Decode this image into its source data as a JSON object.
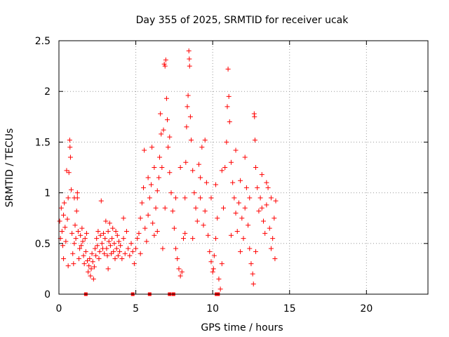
{
  "chart_data": {
    "type": "scatter",
    "title": "Day 355 of 2025, SRMTID for receiver ucak",
    "xlabel": "GPS time / hours",
    "ylabel": "SRMTID / TECUs",
    "xlim": [
      0,
      24
    ],
    "ylim": [
      0,
      2.5
    ],
    "xticks": [
      0,
      5,
      10,
      15,
      20
    ],
    "yticks": [
      0,
      0.5,
      1,
      1.5,
      2,
      2.5
    ],
    "ytick_labels": [
      "0",
      "0.5",
      "1",
      "1.5",
      "2",
      "2.5"
    ],
    "grid": true,
    "marker": "plus",
    "color": "#ff0000",
    "series": [
      {
        "name": "SRMTID",
        "points": [
          [
            0.05,
            0.72
          ],
          [
            0.1,
            0.55
          ],
          [
            0.15,
            0.85
          ],
          [
            0.2,
            0.62
          ],
          [
            0.25,
            0.48
          ],
          [
            0.3,
            0.78
          ],
          [
            0.35,
            0.9
          ],
          [
            0.4,
            0.66
          ],
          [
            0.45,
            0.52
          ],
          [
            0.5,
            1.22
          ],
          [
            0.55,
            0.74
          ],
          [
            0.6,
            0.95
          ],
          [
            0.65,
            1.2
          ],
          [
            0.7,
            1.52
          ],
          [
            0.72,
            1.45
          ],
          [
            0.75,
            1.35
          ],
          [
            0.8,
            1.03
          ],
          [
            0.85,
            0.6
          ],
          [
            0.9,
            0.4
          ],
          [
            0.95,
            0.3
          ],
          [
            1.0,
            0.5
          ],
          [
            1.05,
            0.68
          ],
          [
            1.1,
            0.55
          ],
          [
            1.15,
            0.82
          ],
          [
            1.2,
            0.95
          ],
          [
            1.25,
            0.62
          ],
          [
            1.3,
            0.35
          ],
          [
            1.35,
            0.45
          ],
          [
            1.4,
            0.58
          ],
          [
            1.45,
            0.48
          ],
          [
            1.5,
            0.65
          ],
          [
            1.55,
            0.52
          ],
          [
            1.6,
            0.38
          ],
          [
            1.65,
            0.3
          ],
          [
            1.7,
            0.55
          ],
          [
            1.75,
            0.42
          ],
          [
            1.8,
            0.6
          ],
          [
            1.85,
            0.33
          ],
          [
            1.9,
            0.22
          ],
          [
            1.95,
            0.28
          ],
          [
            2.0,
            0.35
          ],
          [
            2.05,
            0.18
          ],
          [
            2.1,
            0.25
          ],
          [
            2.15,
            0.4
          ],
          [
            2.2,
            0.32
          ],
          [
            2.25,
            0.15
          ],
          [
            2.3,
            0.27
          ],
          [
            2.35,
            0.45
          ],
          [
            2.4,
            0.38
          ],
          [
            2.45,
            0.55
          ],
          [
            2.5,
            0.48
          ],
          [
            2.55,
            0.62
          ],
          [
            2.6,
            0.35
          ],
          [
            2.65,
            0.42
          ],
          [
            2.7,
            0.58
          ],
          [
            2.75,
            0.92
          ],
          [
            2.8,
            0.5
          ],
          [
            2.85,
            0.45
          ],
          [
            2.9,
            0.6
          ],
          [
            2.95,
            0.4
          ],
          [
            3.0,
            0.55
          ],
          [
            3.05,
            0.72
          ],
          [
            3.1,
            0.45
          ],
          [
            3.15,
            0.38
          ],
          [
            3.2,
            0.62
          ],
          [
            3.25,
            0.52
          ],
          [
            3.3,
            0.7
          ],
          [
            3.35,
            0.48
          ],
          [
            3.4,
            0.4
          ],
          [
            3.45,
            0.55
          ],
          [
            3.5,
            0.65
          ],
          [
            3.55,
            0.42
          ],
          [
            3.6,
            0.5
          ],
          [
            3.65,
            0.35
          ],
          [
            3.7,
            0.62
          ],
          [
            3.75,
            0.45
          ],
          [
            3.8,
            0.58
          ],
          [
            3.85,
            0.38
          ],
          [
            3.9,
            0.52
          ],
          [
            3.95,
            0.42
          ],
          [
            4.0,
            0.48
          ],
          [
            4.1,
            0.35
          ],
          [
            4.2,
            0.55
          ],
          [
            4.3,
            0.4
          ],
          [
            4.4,
            0.62
          ],
          [
            4.5,
            0.45
          ],
          [
            4.6,
            0.38
          ],
          [
            4.7,
            0.5
          ],
          [
            4.8,
            0.42
          ],
          [
            4.9,
            0.3
          ],
          [
            5.0,
            0.45
          ],
          [
            5.1,
            0.55
          ],
          [
            5.2,
            0.6
          ],
          [
            5.3,
            0.75
          ],
          [
            5.4,
            0.9
          ],
          [
            5.5,
            1.05
          ],
          [
            5.55,
            1.42
          ],
          [
            5.6,
            0.65
          ],
          [
            5.7,
            0.52
          ],
          [
            5.8,
            0.78
          ],
          [
            5.9,
            0.95
          ],
          [
            6.0,
            1.08
          ],
          [
            6.05,
            1.45
          ],
          [
            6.1,
            0.7
          ],
          [
            6.2,
            0.58
          ],
          [
            6.3,
            0.85
          ],
          [
            6.4,
            0.62
          ],
          [
            6.5,
            1.15
          ],
          [
            6.55,
            1.35
          ],
          [
            6.6,
            1.78
          ],
          [
            6.65,
            1.58
          ],
          [
            6.7,
            1.25
          ],
          [
            6.75,
            0.45
          ],
          [
            6.8,
            1.62
          ],
          [
            6.85,
            2.27
          ],
          [
            6.9,
            2.25
          ],
          [
            6.95,
            2.31
          ],
          [
            7.0,
            1.93
          ],
          [
            7.05,
            1.72
          ],
          [
            7.1,
            1.45
          ],
          [
            7.2,
            1.2
          ],
          [
            7.3,
            1.0
          ],
          [
            7.4,
            0.82
          ],
          [
            7.5,
            0.65
          ],
          [
            7.6,
            0.45
          ],
          [
            7.7,
            0.35
          ],
          [
            7.8,
            0.25
          ],
          [
            7.9,
            0.18
          ],
          [
            8.0,
            0.22
          ],
          [
            8.1,
            0.55
          ],
          [
            8.2,
            0.95
          ],
          [
            8.25,
            1.3
          ],
          [
            8.3,
            1.65
          ],
          [
            8.35,
            1.85
          ],
          [
            8.4,
            1.96
          ],
          [
            8.45,
            2.4
          ],
          [
            8.48,
            2.32
          ],
          [
            8.5,
            2.25
          ],
          [
            8.55,
            1.75
          ],
          [
            8.6,
            1.52
          ],
          [
            8.7,
            1.22
          ],
          [
            8.8,
            1.0
          ],
          [
            8.9,
            0.85
          ],
          [
            9.0,
            0.72
          ],
          [
            9.1,
            1.28
          ],
          [
            9.2,
            0.95
          ],
          [
            9.3,
            1.45
          ],
          [
            9.4,
            0.68
          ],
          [
            9.5,
            0.82
          ],
          [
            9.6,
            1.1
          ],
          [
            9.7,
            0.58
          ],
          [
            9.8,
            0.42
          ],
          [
            9.9,
            0.32
          ],
          [
            10.0,
            0.22
          ],
          [
            10.05,
            0.25
          ],
          [
            10.1,
            0.38
          ],
          [
            10.2,
            0.55
          ],
          [
            10.3,
            0.75
          ],
          [
            10.4,
            0.15
          ],
          [
            10.5,
            0.05
          ],
          [
            10.6,
            0.3
          ],
          [
            10.7,
            0.85
          ],
          [
            10.8,
            1.25
          ],
          [
            10.9,
            1.5
          ],
          [
            10.95,
            1.85
          ],
          [
            11.0,
            2.22
          ],
          [
            11.05,
            1.95
          ],
          [
            11.1,
            1.7
          ],
          [
            11.2,
            1.3
          ],
          [
            11.3,
            1.1
          ],
          [
            11.4,
            0.95
          ],
          [
            11.5,
            0.8
          ],
          [
            11.6,
            0.62
          ],
          [
            11.7,
            0.9
          ],
          [
            11.8,
            1.12
          ],
          [
            11.9,
            0.75
          ],
          [
            12.0,
            0.55
          ],
          [
            12.1,
            0.85
          ],
          [
            12.2,
            1.05
          ],
          [
            12.3,
            0.68
          ],
          [
            12.4,
            0.45
          ],
          [
            12.5,
            0.3
          ],
          [
            12.6,
            0.2
          ],
          [
            12.65,
            0.1
          ],
          [
            12.7,
            1.78
          ],
          [
            12.72,
            1.75
          ],
          [
            12.75,
            1.52
          ],
          [
            12.8,
            1.25
          ],
          [
            12.9,
            1.05
          ],
          [
            13.0,
            0.82
          ],
          [
            13.1,
            0.95
          ],
          [
            13.2,
            1.18
          ],
          [
            13.3,
            0.72
          ],
          [
            13.4,
            0.6
          ],
          [
            13.5,
            0.88
          ],
          [
            13.6,
            1.05
          ],
          [
            13.7,
            0.65
          ],
          [
            13.8,
            0.45
          ],
          [
            13.9,
            0.55
          ],
          [
            14.0,
            0.75
          ],
          [
            14.05,
            0.35
          ],
          [
            14.1,
            0.92
          ],
          [
            0.3,
            0.35
          ],
          [
            0.6,
            0.28
          ],
          [
            1.0,
            0.95
          ],
          [
            1.2,
            1.0
          ],
          [
            3.2,
            0.25
          ],
          [
            4.2,
            0.75
          ],
          [
            5.3,
            0.4
          ],
          [
            5.8,
            1.15
          ],
          [
            6.2,
            1.25
          ],
          [
            6.4,
            1.02
          ],
          [
            6.9,
            0.85
          ],
          [
            7.2,
            1.55
          ],
          [
            7.6,
            0.95
          ],
          [
            7.9,
            1.25
          ],
          [
            8.2,
            0.6
          ],
          [
            8.7,
            0.55
          ],
          [
            9.2,
            1.15
          ],
          [
            9.5,
            1.52
          ],
          [
            9.9,
            0.95
          ],
          [
            10.2,
            1.08
          ],
          [
            10.6,
            1.22
          ],
          [
            11.2,
            0.58
          ],
          [
            11.5,
            1.42
          ],
          [
            11.8,
            0.42
          ],
          [
            12.1,
            1.35
          ],
          [
            12.4,
            0.95
          ],
          [
            12.8,
            0.42
          ],
          [
            13.2,
            0.85
          ],
          [
            13.5,
            1.1
          ],
          [
            13.8,
            0.95
          ]
        ]
      }
    ],
    "baseline_markers_x": [
      1.75,
      4.8,
      5.9,
      7.2,
      7.45,
      10.25,
      10.35
    ]
  }
}
